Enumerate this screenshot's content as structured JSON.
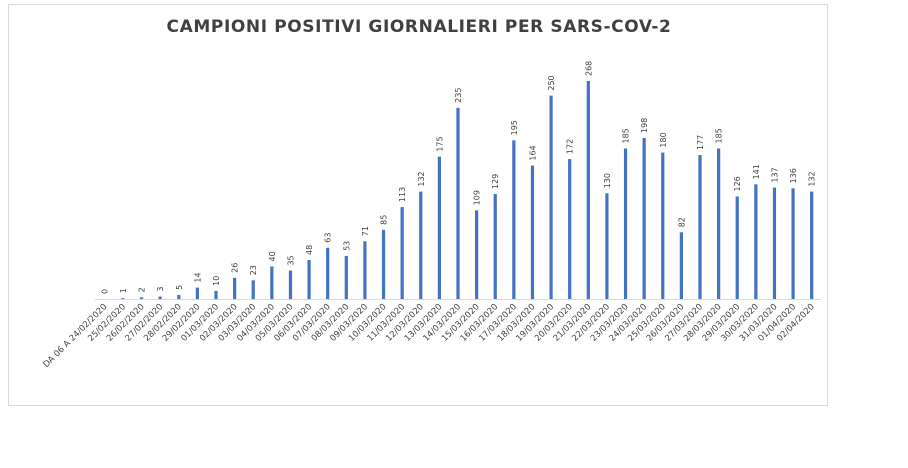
{
  "chart_data": {
    "type": "bar",
    "title": "CAMPIONI POSITIVI GIORNALIERI PER SARS-COV-2",
    "xlabel": "",
    "ylabel": "",
    "ylim": [
      0,
      280
    ],
    "grid": false,
    "legend": "none",
    "bar_color": "#4472c4",
    "categories": [
      "DA 06 A 24/02/2020",
      "25/02/2020",
      "26/02/2020",
      "27/02/2020",
      "28/02/2020",
      "29/02/2020",
      "01/03/2020",
      "02/03/2020",
      "03/03/2020",
      "04/03/2020",
      "05/03/2020",
      "06/03/2020",
      "07/03/2020",
      "08/03/2020",
      "09/03/2020",
      "10/03/2020",
      "11/03/2020",
      "12/03/2020",
      "13/03/2020",
      "14/03/2020",
      "15/03/2020",
      "16/03/2020",
      "17/03/2020",
      "18/03/2020",
      "19/03/2020",
      "20/03/2020",
      "21/03/2020",
      "22/03/2020",
      "23/03/2020",
      "24/03/2020",
      "25/03/2020",
      "26/03/2020",
      "27/03/2020",
      "28/03/2020",
      "29/03/2020",
      "30/03/2020",
      "31/03/2020",
      "01/04/2020",
      "02/04/2020"
    ],
    "values": [
      0,
      1,
      2,
      3,
      5,
      14,
      10,
      26,
      23,
      40,
      35,
      48,
      63,
      53,
      71,
      85,
      113,
      132,
      175,
      235,
      109,
      129,
      195,
      164,
      250,
      172,
      268,
      130,
      185,
      198,
      180,
      82,
      177,
      185,
      126,
      141,
      137,
      136,
      132
    ]
  }
}
